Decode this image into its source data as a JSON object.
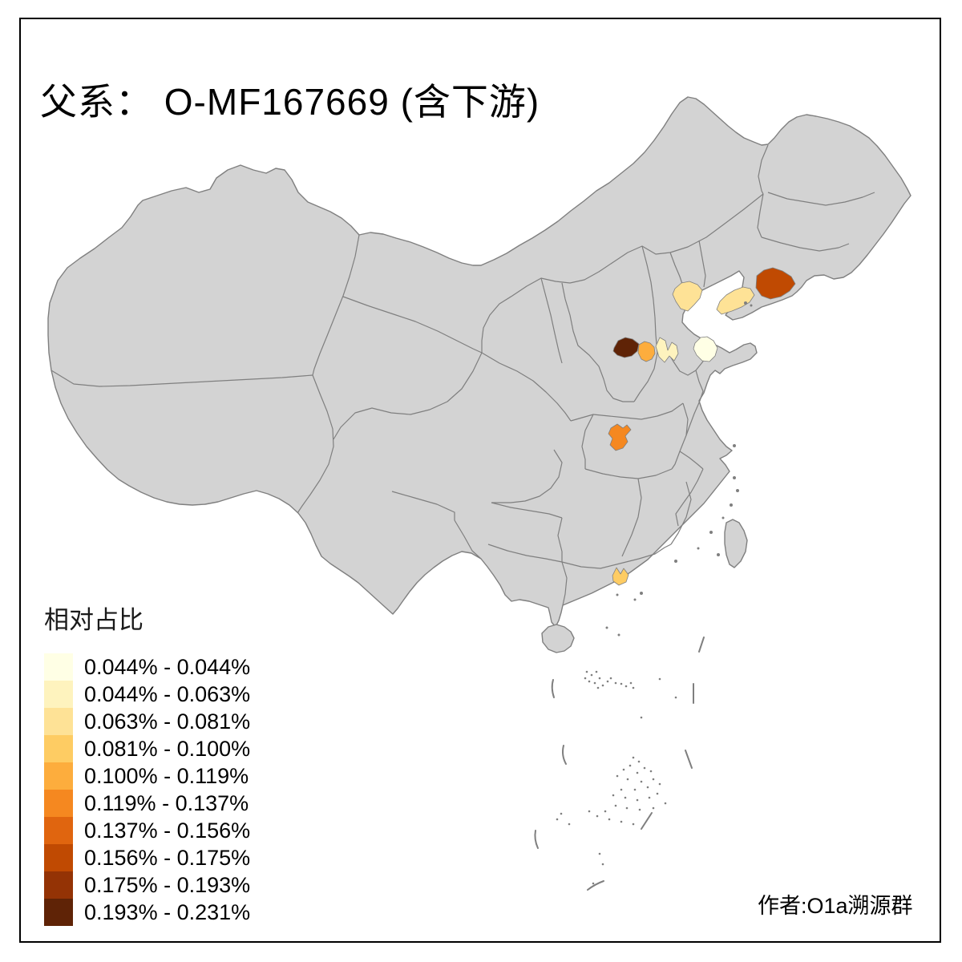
{
  "title": "父系： O-MF167669 (含下游)",
  "author_credit": "作者:O1a溯源群",
  "legend": {
    "title": "相对占比",
    "items": [
      {
        "range": "0.044% - 0.044%",
        "color": "#FFFFE5"
      },
      {
        "range": "0.044% - 0.063%",
        "color": "#FEF3BE"
      },
      {
        "range": "0.063% - 0.081%",
        "color": "#FEE296"
      },
      {
        "range": "0.081% - 0.100%",
        "color": "#FECC63"
      },
      {
        "range": "0.100% - 0.119%",
        "color": "#FDAD3D"
      },
      {
        "range": "0.119% - 0.137%",
        "color": "#F58820"
      },
      {
        "range": "0.137% - 0.156%",
        "color": "#E0650F"
      },
      {
        "range": "0.156% - 0.175%",
        "color": "#C04A02"
      },
      {
        "range": "0.175% - 0.193%",
        "color": "#943305"
      },
      {
        "range": "0.193% - 0.231%",
        "color": "#5F2306"
      }
    ]
  },
  "map": {
    "type": "choropleth",
    "land_color": "#D3D3D3",
    "border_color": "#7F7F7F",
    "sea_color": "#FFFFFF",
    "highlighted_regions": [
      {
        "id": "region-south-shanxi",
        "legend_class": 10
      },
      {
        "id": "region-southeast-shanxi",
        "legend_class": 5
      },
      {
        "id": "region-west-shandong",
        "legend_class": 2
      },
      {
        "id": "region-east-shandong",
        "legend_class": 1
      },
      {
        "id": "region-hebei-coast",
        "legend_class": 3
      },
      {
        "id": "region-liaodong-tip",
        "legend_class": 3
      },
      {
        "id": "region-southeast-liaoning",
        "legend_class": 8
      },
      {
        "id": "region-northwest-hubei",
        "legend_class": 6
      },
      {
        "id": "region-pearl-delta-west",
        "legend_class": 4
      }
    ]
  }
}
